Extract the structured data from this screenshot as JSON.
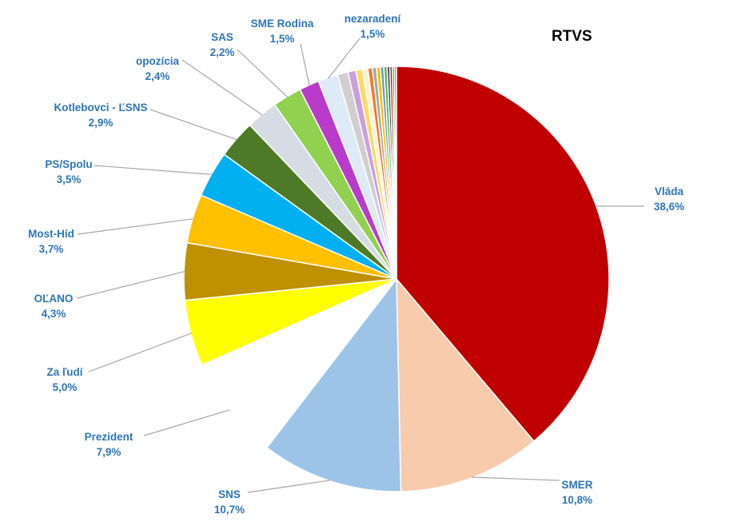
{
  "chart_data": {
    "type": "pie",
    "title": "RTVS",
    "label_color": "#2E75B6",
    "leader_color": "#A6A6A6",
    "slices": [
      {
        "label": "Vláda",
        "value_label": "38,6%",
        "value": 38.6,
        "color": "#C00000"
      },
      {
        "label": "SMER",
        "value_label": "10,8%",
        "value": 10.8,
        "color": "#F8CBAD"
      },
      {
        "label": "SNS",
        "value_label": "10,7%",
        "value": 10.7,
        "color": "#9DC3E6"
      },
      {
        "label": "Prezident",
        "value_label": "7,9%",
        "value": 7.9,
        "color": "#FFFFFF"
      },
      {
        "label": "Za ľudí",
        "value_label": "5,0%",
        "value": 5.0,
        "color": "#FFFF00"
      },
      {
        "label": "OĽANO",
        "value_label": "4,3%",
        "value": 4.3,
        "color": "#BF9000"
      },
      {
        "label": "Most-Híd",
        "value_label": "3,7%",
        "value": 3.7,
        "color": "#FFC000"
      },
      {
        "label": "PS/Spolu",
        "value_label": "3,5%",
        "value": 3.5,
        "color": "#00B0F0"
      },
      {
        "label": "Kotlebovci - ĽSNS",
        "value_label": "2,9%",
        "value": 2.9,
        "color": "#4E7A28"
      },
      {
        "label": "opozícia",
        "value_label": "2,4%",
        "value": 2.4,
        "color": "#D6DCE4"
      },
      {
        "label": "SAS",
        "value_label": "2,2%",
        "value": 2.2,
        "color": "#92D050"
      },
      {
        "label": "SME Rodina",
        "value_label": "1,5%",
        "value": 1.5,
        "color": "#B93ACB"
      },
      {
        "label": "nezaradení",
        "value_label": "1,5%",
        "value": 1.5,
        "color": "#DDEBF7"
      },
      {
        "label": "",
        "value_label": "",
        "value": 0.8,
        "color": "#D0CECE"
      },
      {
        "label": "",
        "value_label": "",
        "value": 0.6,
        "color": "#C9A0DC"
      },
      {
        "label": "",
        "value_label": "",
        "value": 0.5,
        "color": "#FFD966"
      },
      {
        "label": "",
        "value_label": "",
        "value": 0.4,
        "color": "#FFF2CC"
      },
      {
        "label": "",
        "value_label": "",
        "value": 0.35,
        "color": "#ED7D31"
      },
      {
        "label": "",
        "value_label": "",
        "value": 0.3,
        "color": "#A5A5A5"
      },
      {
        "label": "",
        "value_label": "",
        "value": 0.3,
        "color": "#FFC000"
      },
      {
        "label": "",
        "value_label": "",
        "value": 0.25,
        "color": "#5B9BD5"
      },
      {
        "label": "",
        "value_label": "",
        "value": 0.25,
        "color": "#70AD47"
      },
      {
        "label": "",
        "value_label": "",
        "value": 0.2,
        "color": "#264478"
      },
      {
        "label": "",
        "value_label": "",
        "value": 0.2,
        "color": "#9E480E"
      },
      {
        "label": "",
        "value_label": "",
        "value": 0.15,
        "color": "#636363"
      },
      {
        "label": "",
        "value_label": "",
        "value": 0.15,
        "color": "#997300"
      }
    ]
  }
}
